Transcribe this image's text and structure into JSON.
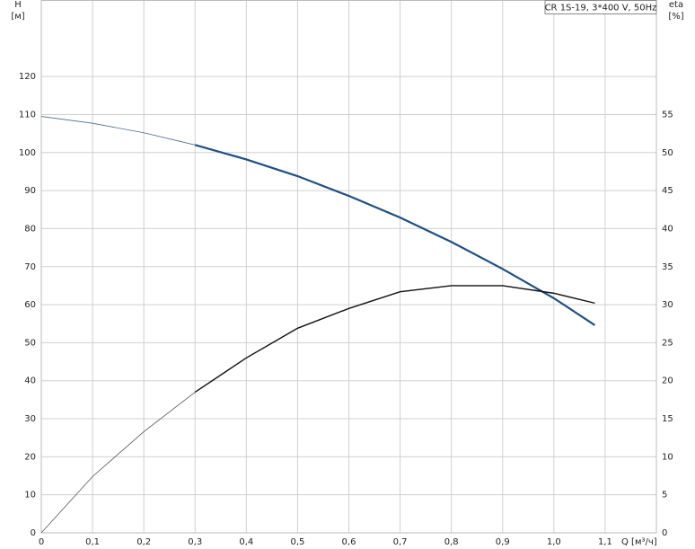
{
  "chart_data": {
    "type": "line",
    "legend_text": "CR 1S-19, 3*400 V, 50Hz",
    "y_label": "H",
    "y_unit": "[м]",
    "y2_label": "eta",
    "y2_unit": "[%]",
    "x_label": "Q [м³/ч]",
    "x": [
      0,
      0.1,
      0.2,
      0.3,
      0.4,
      0.5,
      0.6,
      0.7,
      0.8,
      0.9,
      1.0,
      1.08
    ],
    "xlim": [
      0,
      1.2
    ],
    "xticks": [
      0,
      {
        "value": 0.1,
        "label": "0,1"
      },
      {
        "value": 0.2,
        "label": "0,2"
      },
      {
        "value": 0.3,
        "label": "0,3"
      },
      {
        "value": 0.4,
        "label": "0,4"
      },
      {
        "value": 0.5,
        "label": "0,5"
      },
      {
        "value": 0.6,
        "label": "0,6"
      },
      {
        "value": 0.7,
        "label": "0,7"
      },
      {
        "value": 0.8,
        "label": "0,8"
      },
      {
        "value": 0.9,
        "label": "0,9"
      },
      {
        "value": 1.0,
        "label": "1,0"
      },
      {
        "value": 1.1,
        "label": "1,1"
      }
    ],
    "ylim": [
      0,
      140
    ],
    "yticks": [
      0,
      10,
      20,
      30,
      40,
      50,
      60,
      70,
      80,
      90,
      100,
      110,
      120
    ],
    "y2lim": [
      0,
      70
    ],
    "y2ticks": [
      0,
      5,
      10,
      15,
      20,
      25,
      30,
      35,
      40,
      45,
      50,
      55
    ],
    "grid": true,
    "series": [
      {
        "color": "#4a6a8e",
        "width": 0.8,
        "values": [
          109.5,
          107.7,
          105.2,
          102.0,
          null,
          null,
          null,
          null,
          null,
          null,
          null,
          null
        ]
      },
      {
        "color": "#1d4f85",
        "width": 2.2,
        "values": [
          null,
          null,
          null,
          102.0,
          98.2,
          93.8,
          88.6,
          82.9,
          76.5,
          69.4,
          61.7,
          54.6
        ]
      },
      {
        "color": "#555555",
        "width": 0.8,
        "axis": "y2",
        "values": [
          0,
          7.4,
          13.3,
          18.5,
          null,
          null,
          null,
          null,
          null,
          null,
          null,
          null
        ]
      },
      {
        "color": "#111111",
        "width": 1.4,
        "axis": "y2",
        "values": [
          null,
          null,
          null,
          18.5,
          23.0,
          26.9,
          29.5,
          31.7,
          32.5,
          32.5,
          31.5,
          30.2
        ]
      }
    ]
  }
}
